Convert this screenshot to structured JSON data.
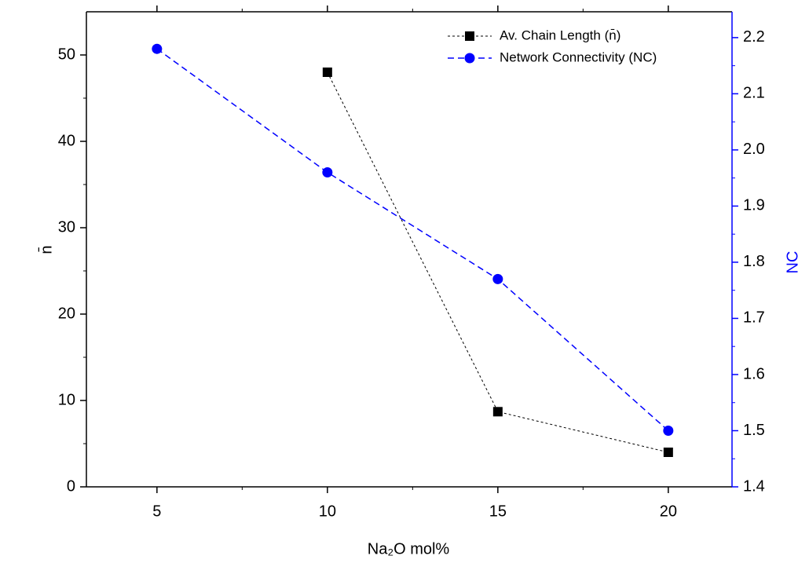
{
  "chart_data": {
    "type": "line",
    "x_label": "Na₂O mol%",
    "y_label": "n̄",
    "y2_label": "NC",
    "xlim": [
      2.93,
      21.87
    ],
    "xticks": [
      5,
      10,
      15,
      20
    ],
    "ylim": [
      0,
      55
    ],
    "yticks": [
      0,
      10,
      20,
      30,
      40,
      50
    ],
    "y2lim": [
      1.4,
      2.246
    ],
    "y2ticks": [
      1.4,
      1.5,
      1.6,
      1.7,
      1.8,
      1.9,
      {
        "value": 2,
        "label": "2.0"
      },
      2.1,
      2.2
    ],
    "y2_color": "#0000ff",
    "legend": "upper right",
    "series": [
      {
        "name": "Av. Chain Length (n̄)",
        "color": "#000000",
        "marker": "square",
        "x": [
          10,
          15,
          20
        ],
        "values": [
          48,
          8.7,
          4
        ]
      },
      {
        "name": "Network Connectivity (NC)",
        "color": "#0000ff",
        "marker": "circle",
        "axis": "y2",
        "x": [
          5,
          10,
          15,
          20
        ],
        "values": [
          2.18,
          1.96,
          1.77,
          1.5
        ]
      }
    ]
  }
}
